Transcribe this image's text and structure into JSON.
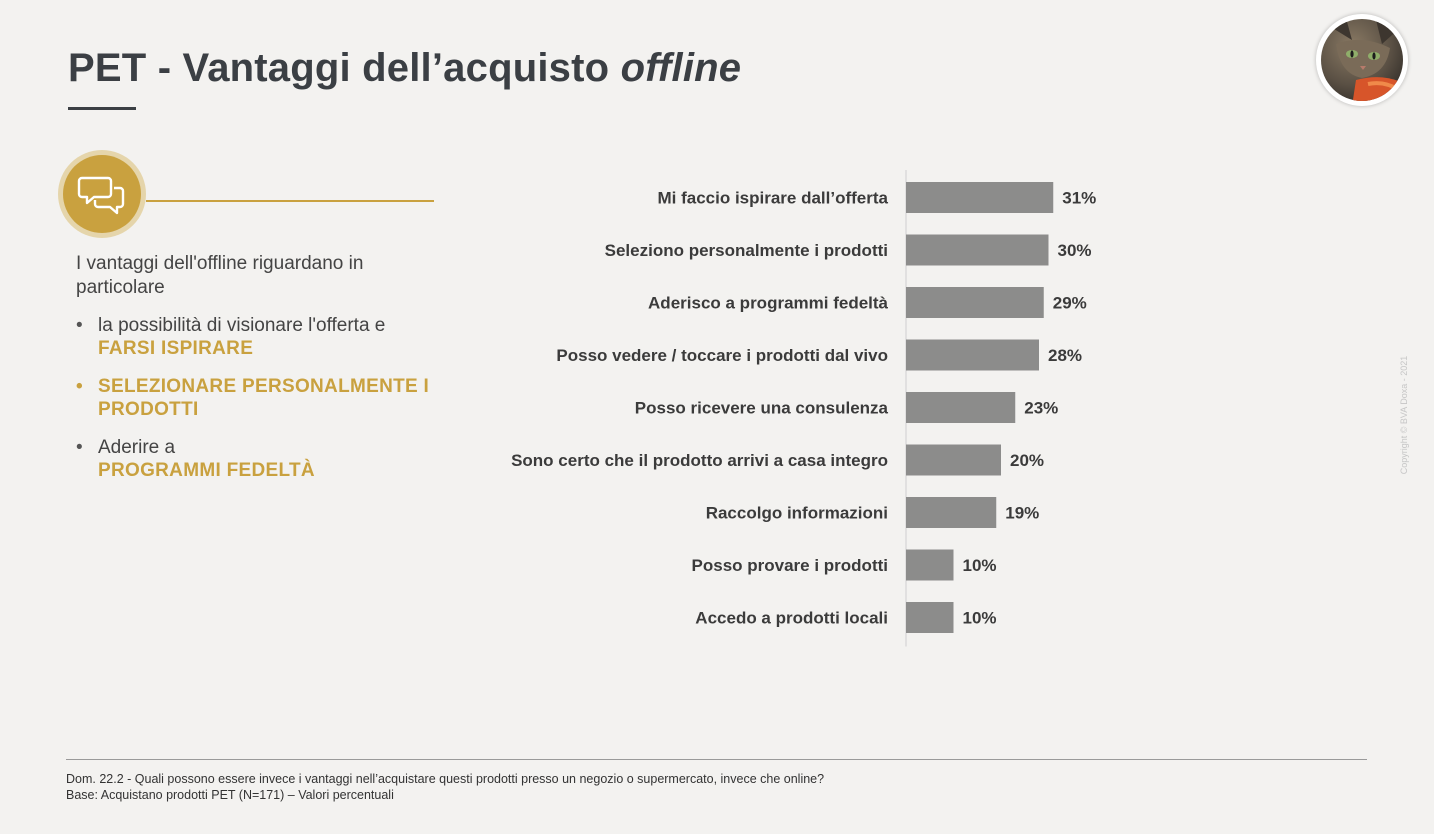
{
  "title": {
    "main": "PET - Vantaggi dell’acquisto",
    "italic": "offline"
  },
  "icons": {
    "badge": "chat-bubbles-icon",
    "avatar": "cat-photo"
  },
  "colors": {
    "accent_gold": "#c9a13f",
    "bar": "#8c8c8b",
    "text_dark": "#3b3f44",
    "background": "#f3f2f0"
  },
  "intro": "I vantaggi dell'offline riguardano in particolare",
  "bullets": [
    {
      "text": "la possibilità di visionare l'offerta e ",
      "highlight": "FARSI ISPIRARE"
    },
    {
      "text": "",
      "highlight": "SELEZIONARE PERSONALMENTE I PRODOTTI"
    },
    {
      "text": "Aderire a ",
      "highlight": "PROGRAMMI FEDELTÀ"
    }
  ],
  "chart_data": {
    "type": "bar",
    "orientation": "horizontal",
    "title": "",
    "xlabel": "",
    "ylabel": "",
    "xlim": [
      0,
      100
    ],
    "grid": false,
    "legend": "none",
    "value_suffix": "%",
    "categories": [
      "Mi faccio ispirare dall’offerta",
      "Seleziono personalmente i prodotti",
      "Aderisco a programmi fedeltà",
      "Posso vedere / toccare i prodotti dal vivo",
      "Posso ricevere una consulenza",
      "Sono certo che il prodotto arrivi a casa integro",
      "Raccolgo informazioni",
      "Posso provare i prodotti",
      "Accedo a prodotti locali"
    ],
    "values": [
      31,
      30,
      29,
      28,
      23,
      20,
      19,
      10,
      10
    ],
    "data_labels": [
      "31%",
      "30%",
      "29%",
      "28%",
      "23%",
      "20%",
      "19%",
      "10%",
      "10%"
    ]
  },
  "footnote": {
    "question": "Dom. 22.2 - Quali possono essere invece i vantaggi nell’acquistare questi prodotti presso un negozio o supermercato, invece che online?",
    "base": "Base: Acquistano prodotti PET (N=171) – Valori percentuali"
  },
  "copyright": "Copyright © BVA Doxa - 2021"
}
